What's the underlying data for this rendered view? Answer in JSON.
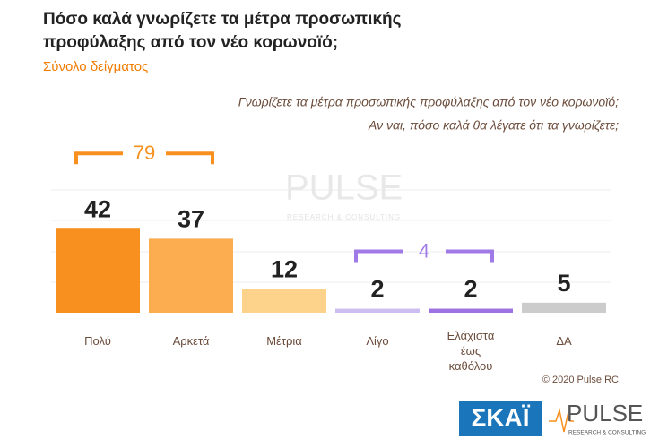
{
  "chart_data": {
    "type": "bar",
    "title": "Πόσο καλά γνωρίζετε τα μέτρα προσωπικής προφύλαξης από τον νέο κορωνοϊό;",
    "subtitle": "Σύνολο δείγματος",
    "question": [
      "Γνωρίζετε τα μέτρα προσωπικής προφύλαξης από τον νέο κορωνοϊό;",
      "Αν ναι, πόσο καλά θα λέγατε ότι τα γνωρίζετε;"
    ],
    "categories": [
      "Πολύ",
      "Αρκετά",
      "Μέτρια",
      "Λίγο",
      "Ελάχιστα έως καθόλου",
      "ΔΑ"
    ],
    "values": [
      42,
      37,
      12,
      2,
      2,
      5
    ],
    "colors": [
      "#f7901e",
      "#fbad4f",
      "#fdd38c",
      "#cdbdf0",
      "#9d72e2",
      "#cccccc"
    ],
    "ylim": [
      0,
      60
    ],
    "annotations": [
      {
        "value": 79,
        "categories": [
          0,
          1
        ],
        "color": "#f7901e"
      },
      {
        "value": 4,
        "categories": [
          3,
          4
        ],
        "color": "#a07ae6"
      }
    ],
    "copyright": "© 2020 Pulse RC",
    "broadcaster": "ΣΚΑΪ",
    "logo": {
      "name": "PULSE",
      "tagline": "RESEARCH & CONSULTING"
    }
  }
}
